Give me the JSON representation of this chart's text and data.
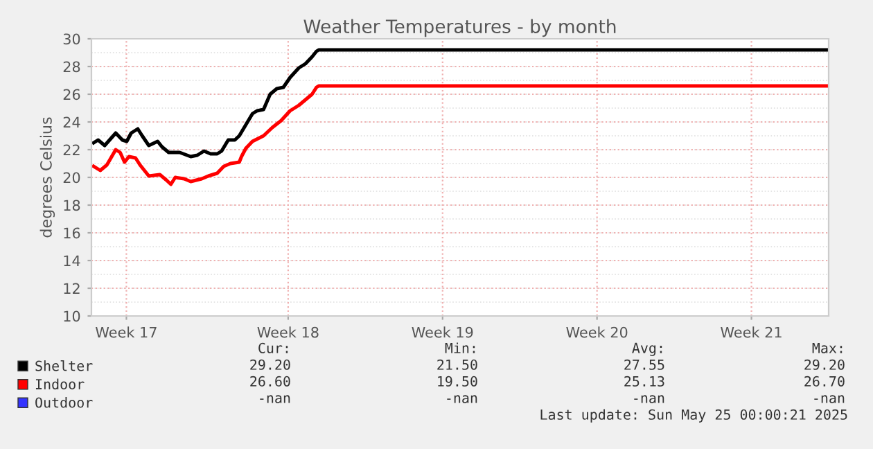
{
  "chart_data": {
    "type": "line",
    "title": "Weather Temperatures - by month",
    "ylabel": "degrees Celsius",
    "xlim": [
      "2025-04-21T14:00",
      "2025-05-25T00:00"
    ],
    "xticks": [
      {
        "value": "2025-04-23T04:00",
        "label": "Week 17"
      },
      {
        "value": "2025-04-30T12:00",
        "label": "Week 18"
      },
      {
        "value": "2025-05-07T12:00",
        "label": "Week 19"
      },
      {
        "value": "2025-05-14T12:00",
        "label": "Week 20"
      },
      {
        "value": "2025-05-21T12:00",
        "label": "Week 21"
      }
    ],
    "ylim": [
      10,
      30
    ],
    "yticks": [
      10,
      12,
      14,
      16,
      18,
      20,
      22,
      24,
      26,
      28,
      30
    ],
    "grid": true,
    "legend": "bottom left",
    "marker": "none",
    "line_style": "solid",
    "series": [
      {
        "name": "Shelter",
        "color": "#000000",
        "x": [
          "2025-04-21T16:24",
          "2025-04-21T21:12",
          "2025-04-22T04:24",
          "2025-04-22T16:24",
          "2025-04-22T23:36",
          "2025-04-23T04:24",
          "2025-04-23T09:12",
          "2025-04-23T16:24",
          "2025-04-23T21:12",
          "2025-04-24T04:24",
          "2025-04-24T14:00",
          "2025-04-24T18:48",
          "2025-04-25T02:00",
          "2025-04-25T14:00",
          "2025-04-26T02:00",
          "2025-04-26T09:12",
          "2025-04-26T16:24",
          "2025-04-26T23:36",
          "2025-04-27T06:48",
          "2025-04-27T11:36",
          "2025-04-27T18:48",
          "2025-04-28T02:00",
          "2025-04-28T06:48",
          "2025-04-28T14:00",
          "2025-04-28T21:12",
          "2025-04-29T02:00",
          "2025-04-29T09:12",
          "2025-04-29T16:24",
          "2025-04-29T23:36",
          "2025-04-30T06:48",
          "2025-04-30T14:00",
          "2025-04-30T23:36",
          "2025-05-01T06:48",
          "2025-05-01T14:00",
          "2025-05-01T18:48",
          "2025-05-01T21:12",
          "2025-05-24T23:36"
        ],
        "values": [
          22.5,
          22.7,
          22.3,
          23.2,
          22.7,
          22.6,
          23.2,
          23.5,
          23.0,
          22.3,
          22.6,
          22.2,
          21.8,
          21.8,
          21.5,
          21.6,
          21.9,
          21.7,
          21.7,
          21.9,
          22.7,
          22.7,
          23.0,
          23.8,
          24.6,
          24.8,
          24.9,
          26.0,
          26.4,
          26.5,
          27.2,
          27.9,
          28.2,
          28.7,
          29.1,
          29.2,
          29.2
        ]
      },
      {
        "name": "Indoor",
        "color": "#ff0000",
        "x": [
          "2025-04-21T16:24",
          "2025-04-21T23:36",
          "2025-04-22T06:48",
          "2025-04-22T16:24",
          "2025-04-22T21:12",
          "2025-04-23T02:00",
          "2025-04-23T06:48",
          "2025-04-23T14:00",
          "2025-04-23T18:48",
          "2025-04-24T04:24",
          "2025-04-24T16:24",
          "2025-04-24T23:36",
          "2025-04-25T04:24",
          "2025-04-25T09:12",
          "2025-04-25T18:48",
          "2025-04-26T02:00",
          "2025-04-26T14:00",
          "2025-04-26T21:12",
          "2025-04-27T06:48",
          "2025-04-27T14:00",
          "2025-04-27T21:12",
          "2025-04-28T06:48",
          "2025-04-28T09:12",
          "2025-04-28T14:00",
          "2025-04-28T21:12",
          "2025-04-29T09:12",
          "2025-04-29T18:48",
          "2025-04-30T04:24",
          "2025-04-30T14:00",
          "2025-04-30T23:36",
          "2025-05-01T06:48",
          "2025-05-01T14:00",
          "2025-05-01T18:48",
          "2025-05-01T21:12",
          "2025-05-24T23:36"
        ],
        "values": [
          20.8,
          20.5,
          20.9,
          22.0,
          21.8,
          21.1,
          21.5,
          21.4,
          20.9,
          20.1,
          20.2,
          19.8,
          19.5,
          20.0,
          19.9,
          19.7,
          19.9,
          20.1,
          20.3,
          20.8,
          21.0,
          21.1,
          21.5,
          22.1,
          22.6,
          23.0,
          23.6,
          24.1,
          24.8,
          25.2,
          25.6,
          26.0,
          26.5,
          26.6,
          26.6
        ]
      },
      {
        "name": "Outdoor",
        "color": "#3333ff"
      }
    ],
    "annotations": [
      "Cur:",
      "Min:",
      "Avg:",
      "Max:",
      "29.20",
      "21.50",
      "27.55",
      "29.20",
      "26.60",
      "19.50",
      "25.13",
      "26.70",
      "-nan",
      "-nan",
      "-nan",
      "-nan",
      "Last update: Sun May 25 00:00:21 2025"
    ]
  }
}
